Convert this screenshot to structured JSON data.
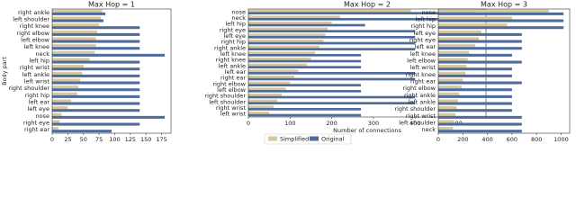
{
  "chart_data": [
    {
      "type": "barh",
      "title": "Max Hop = 1",
      "ylabel": "Body part",
      "categories": [
        "right ankle",
        "left shoulder",
        "right knee",
        "right elbow",
        "left elbow",
        "left knee",
        "neck",
        "left hip",
        "right wrist",
        "left ankle",
        "left wrist",
        "right shoulder",
        "right hip",
        "left ear",
        "left eye",
        "nose",
        "right eye",
        "right ear"
      ],
      "series": [
        {
          "name": "Simplified",
          "color": "#d6c89a",
          "values": [
            80,
            78,
            75,
            72,
            70,
            70,
            68,
            60,
            50,
            48,
            45,
            42,
            40,
            30,
            25,
            15,
            12,
            10
          ]
        },
        {
          "name": "Original",
          "color": "#4f6b9a",
          "values": [
            85,
            82,
            140,
            140,
            140,
            140,
            180,
            140,
            140,
            140,
            140,
            140,
            140,
            140,
            140,
            180,
            140,
            95
          ]
        }
      ],
      "xlim": [
        0,
        190
      ],
      "xticks": [
        0,
        25,
        50,
        75,
        100,
        125,
        150,
        175
      ]
    },
    {
      "type": "barh",
      "title": "Max Hop = 2",
      "xlabel": "Number of connections",
      "categories": [
        "nose",
        "neck",
        "left hip",
        "right eye",
        "left eye",
        "right hip",
        "right ankle",
        "left knee",
        "right knee",
        "left ankle",
        "left ear",
        "right ear",
        "right elbow",
        "left elbow",
        "right shoulder",
        "left shoulder",
        "right wrist",
        "left wrist"
      ],
      "series": [
        {
          "color": "#d6c89a",
          "values": [
            390,
            220,
            200,
            190,
            185,
            180,
            170,
            160,
            150,
            140,
            120,
            110,
            100,
            90,
            80,
            70,
            60,
            50
          ]
        },
        {
          "color": "#4f6b9a",
          "values": [
            545,
            545,
            280,
            400,
            400,
            400,
            400,
            270,
            270,
            270,
            400,
            400,
            270,
            270,
            400,
            400,
            270,
            270
          ]
        }
      ],
      "xlim": [
        0,
        570
      ],
      "xticks": [
        0,
        100,
        200,
        300,
        400,
        500
      ]
    },
    {
      "type": "barh",
      "title": "Max Hop = 3",
      "categories": [
        "nose",
        "left hip",
        "right hip",
        "left eye",
        "right eye",
        "left ear",
        "left knee",
        "left elbow",
        "left wrist",
        "right knee",
        "right ear",
        "right elbow",
        "right ankle",
        "left ankle",
        "right shoulder",
        "right wrist",
        "left shoulder",
        "neck"
      ],
      "series": [
        {
          "color": "#d6c89a",
          "values": [
            900,
            600,
            560,
            350,
            330,
            300,
            250,
            240,
            230,
            220,
            200,
            190,
            170,
            160,
            150,
            140,
            130,
            120
          ]
        },
        {
          "color": "#4f6b9a",
          "values": [
            1020,
            1020,
            1020,
            680,
            680,
            680,
            600,
            680,
            600,
            600,
            680,
            600,
            600,
            600,
            600,
            680,
            680,
            680
          ]
        }
      ],
      "xlim": [
        0,
        1070
      ],
      "xticks": [
        0,
        200,
        400,
        600,
        800,
        1000
      ]
    }
  ]
}
